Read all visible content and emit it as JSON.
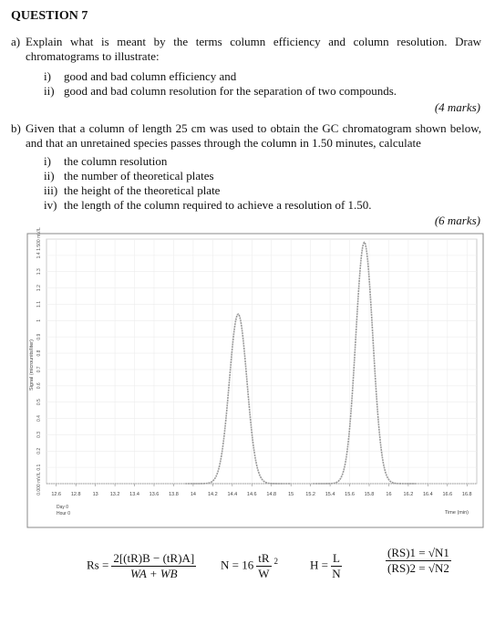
{
  "question": {
    "title": "QUESTION 7",
    "part_a": {
      "label": "a)",
      "text": "Explain what is meant by the terms column efficiency and column resolution. Draw chromatograms to illustrate:",
      "items": [
        {
          "label": "i)",
          "text": "good and bad column efficiency and"
        },
        {
          "label": "ii)",
          "text": "good and bad column resolution for the separation of two compounds."
        }
      ],
      "marks": "(4 marks)"
    },
    "part_b": {
      "label": "b)",
      "text": "Given that a column of length 25 cm was used to obtain the GC chromatogram shown below, and that an unretained species passes through the column in 1.50 minutes, calculate",
      "items": [
        {
          "label": "i)",
          "text": "the column resolution"
        },
        {
          "label": "ii)",
          "text": "the number of theoretical plates"
        },
        {
          "label": "iii)",
          "text": "the height of the theoretical plate"
        },
        {
          "label": "iv)",
          "text": "the length of the column required to achieve a resolution of 1.50."
        }
      ],
      "marks": "(6 marks)"
    }
  },
  "chart_data": {
    "type": "chromatogram",
    "x_label": "Time (min)",
    "y_label": "Signal (microunits/liter)",
    "footnote": [
      "Day 0",
      "Hour 0"
    ],
    "x": [
      14.46,
      15.75
    ],
    "values": [
      1.04,
      1.48
    ],
    "widths": [
      0.36,
      0.35
    ],
    "color": "#9a9a9a",
    "xlim": [
      12.5,
      16.9
    ],
    "xticks": [
      12.6,
      12.8,
      13,
      13.2,
      13.4,
      13.6,
      13.8,
      14,
      14.2,
      14.4,
      14.6,
      14.8,
      15,
      15.2,
      15.4,
      15.6,
      15.8,
      16,
      16.2,
      16.4,
      16.6,
      16.8
    ],
    "ylim": [
      0,
      1.5
    ],
    "yticks": [
      {
        "value": 0,
        "label": "0.000 mV/L"
      },
      0.1,
      0.2,
      0.3,
      0.4,
      0.5,
      0.6,
      0.7,
      0.8,
      0.9,
      1,
      1.1,
      1.2,
      1.3,
      1.4,
      {
        "value": 1.5,
        "label": "1.500 mV/L"
      }
    ],
    "grid": true
  },
  "formulas": [
    {
      "lhs": "Rs =",
      "numerator": "2[(tR)B − (tR)A]",
      "denominator": "WA + WB"
    },
    {
      "lhs": "N = 16",
      "numerator": "tR",
      "denominator": "W",
      "exponent": "2"
    },
    {
      "lhs": "H =",
      "numerator": "L",
      "denominator": "N"
    },
    {
      "top": "(RS)1 = √N1",
      "bottom": "(RS)2 = √N2"
    }
  ]
}
